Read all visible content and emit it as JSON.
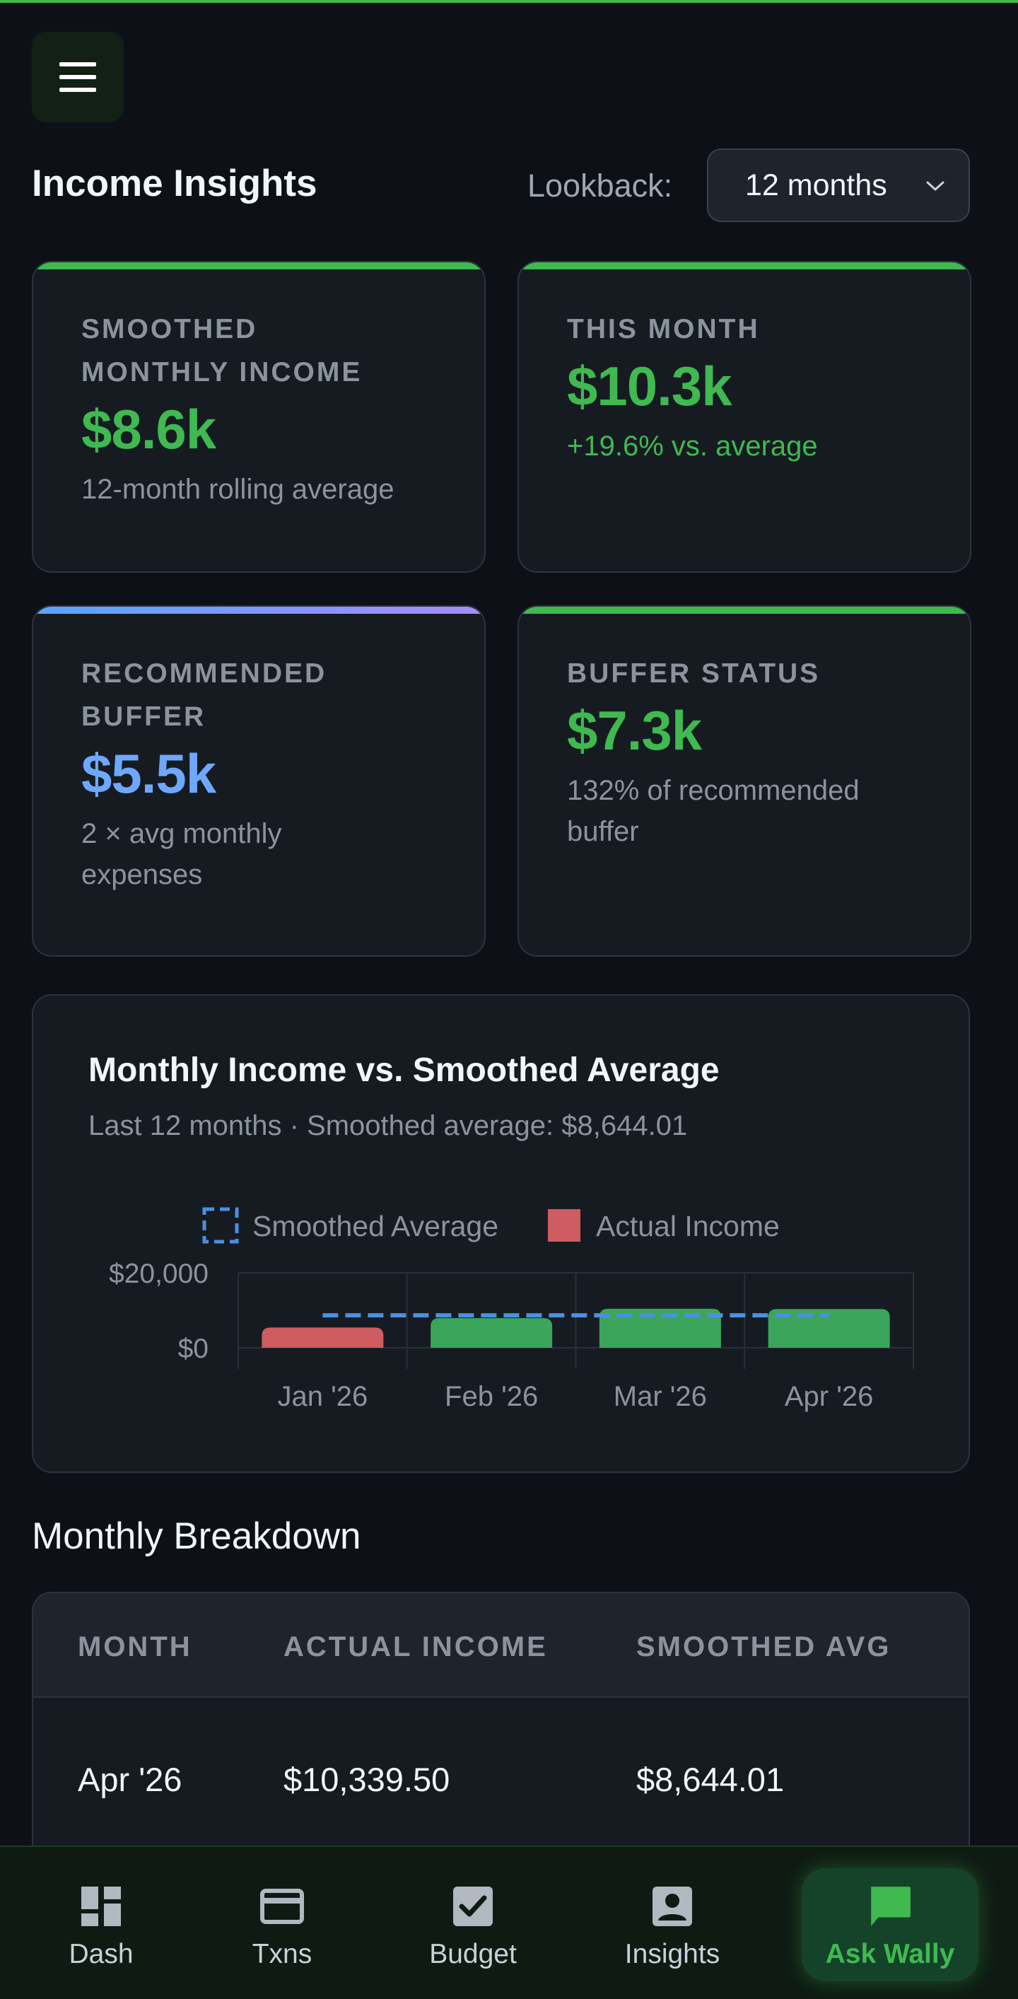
{
  "header": {
    "menu_icon": "hamburger-icon",
    "title": "Income Insights",
    "lookback_label": "Lookback:",
    "lookback_value": "12 months"
  },
  "cards": [
    {
      "label_lines": [
        "SMOOTHED",
        "MONTHLY INCOME"
      ],
      "value": "$8.6k",
      "sub_lines": [
        "12-month rolling average"
      ],
      "accent": "#3fb950"
    },
    {
      "label_lines": [
        "THIS MONTH"
      ],
      "value": "$10.3k",
      "sub_lines": [
        "+19.6% vs. average"
      ],
      "accent": "#3fb950"
    },
    {
      "label_lines": [
        "RECOMMENDED",
        "BUFFER"
      ],
      "value": "$5.5k",
      "sub_lines": [
        "2 × avg monthly",
        "expenses"
      ],
      "accent": "#58a6ff"
    },
    {
      "label_lines": [
        "BUFFER STATUS"
      ],
      "value": "$7.3k",
      "sub_lines": [
        "132% of recommended",
        "buffer"
      ],
      "accent": "#3fb950"
    }
  ],
  "chart": {
    "title": "Monthly Income vs. Smoothed Average",
    "subtitle": "Last 12 months · Smoothed average: $8,644.01"
  },
  "chart_data": {
    "type": "bar",
    "categories": [
      "Jan '26",
      "Feb '26",
      "Mar '26",
      "Apr '26"
    ],
    "series": [
      {
        "name": "Actual Income",
        "values": [
          5400,
          7900,
          10400,
          10339.5
        ],
        "colors": [
          "#cf5c60",
          "#3ba55c",
          "#3ba55c",
          "#3ba55c"
        ]
      },
      {
        "name": "Smoothed Average",
        "type": "line",
        "style": "dashed",
        "values": [
          8644.01,
          8644.01,
          8644.01,
          8644.01
        ],
        "color": "#4a90e2"
      }
    ],
    "legend": [
      "Smoothed Average",
      "Actual Income"
    ],
    "legend_placement": "top",
    "ylim": [
      0,
      20000
    ],
    "yticks": [
      "$0",
      "$20,000"
    ],
    "grid": true
  },
  "breakdown": {
    "title": "Monthly Breakdown",
    "headers": [
      "MONTH",
      "ACTUAL INCOME",
      "SMOOTHED AVG"
    ],
    "rows": [
      {
        "month": "Apr '26",
        "actual": "$10,339.50",
        "smoothed": "$8,644.01"
      }
    ]
  },
  "nav": {
    "items": [
      {
        "label": "Dash",
        "icon": "dashboard-icon"
      },
      {
        "label": "Txns",
        "icon": "credit-card-icon"
      },
      {
        "label": "Budget",
        "icon": "checkbox-icon"
      },
      {
        "label": "Insights",
        "icon": "account-box-icon"
      }
    ],
    "ask": {
      "label": "Ask Wally",
      "icon": "chat-bubble-icon"
    }
  }
}
